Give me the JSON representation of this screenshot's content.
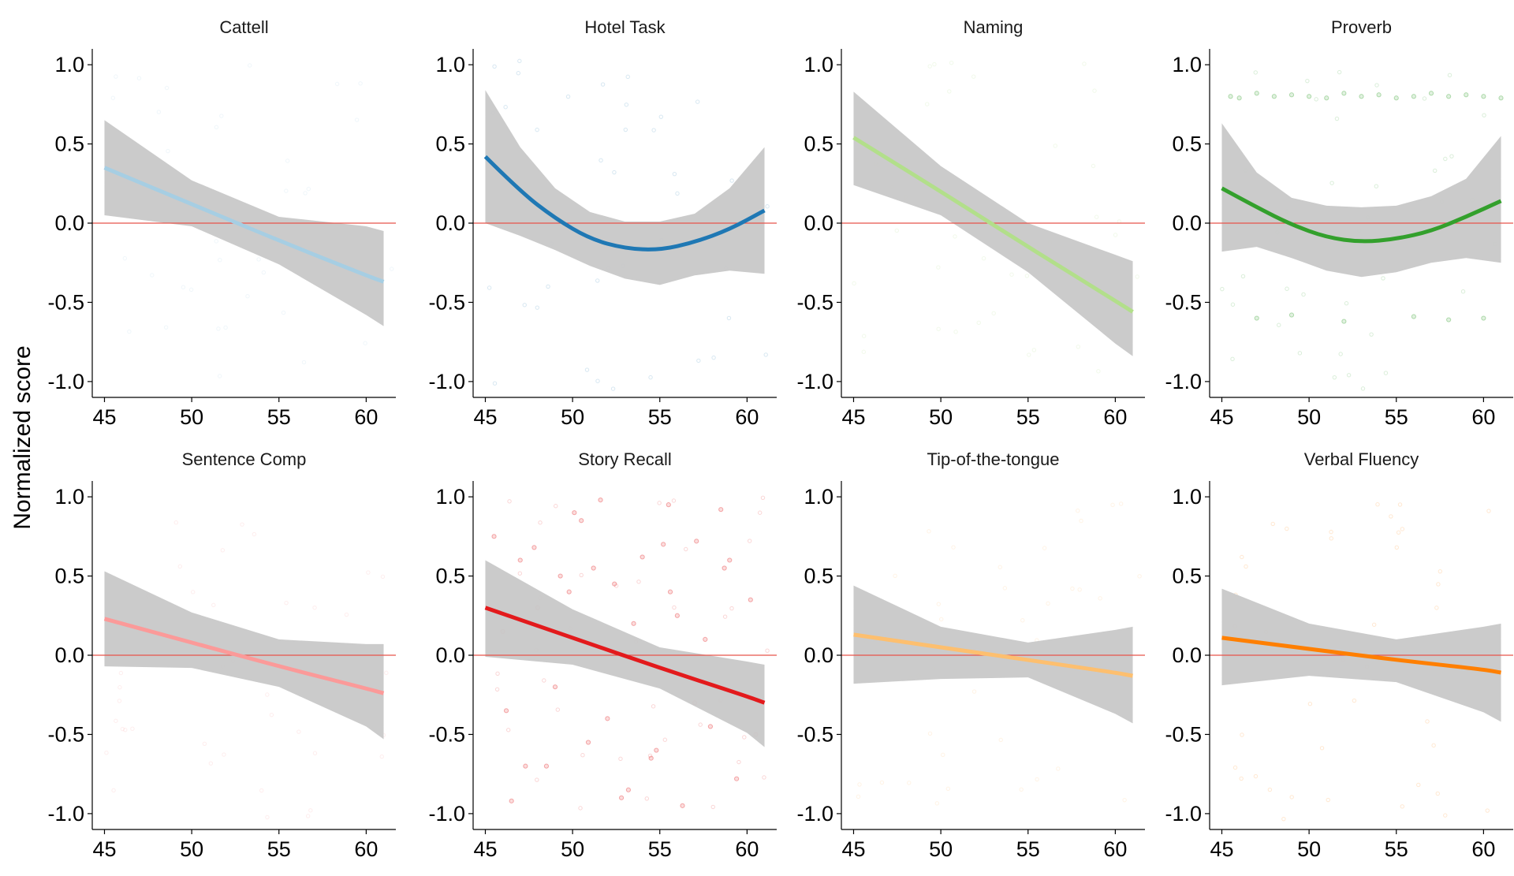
{
  "chart_data": {
    "type": "line",
    "ylabel": "Normalized score",
    "xlim": [
      44.3,
      61.7
    ],
    "ylim": [
      -1.1,
      1.1
    ],
    "xticks": [
      "45",
      "50",
      "55",
      "60"
    ],
    "yticks": [
      "-1.0",
      "-0.5",
      "0.0",
      "0.5",
      "1.0"
    ],
    "reference_line": {
      "y": 0,
      "color": "#e8534a"
    },
    "band_color": "#c8c8c8",
    "panels": [
      {
        "title": "Cattell",
        "color": "#a6cee3",
        "fit": {
          "x": [
            45,
            50,
            55,
            60,
            61
          ],
          "y": [
            0.35,
            0.12,
            -0.11,
            -0.33,
            -0.37
          ]
        },
        "ci_upper": [
          0.65,
          0.27,
          0.04,
          -0.02,
          -0.05
        ],
        "ci_lower": [
          0.05,
          -0.02,
          -0.26,
          -0.58,
          -0.65
        ]
      },
      {
        "title": "Hotel Task",
        "color": "#1f78b4",
        "fit": {
          "x": [
            45,
            47,
            49,
            51,
            53,
            55,
            57,
            59,
            61
          ],
          "y": [
            0.42,
            0.2,
            0.03,
            -0.1,
            -0.16,
            -0.17,
            -0.12,
            -0.04,
            0.08
          ]
        },
        "ci_upper": [
          0.84,
          0.48,
          0.22,
          0.07,
          0.01,
          0.01,
          0.06,
          0.22,
          0.48
        ],
        "ci_lower": [
          0.0,
          -0.08,
          -0.17,
          -0.27,
          -0.35,
          -0.39,
          -0.33,
          -0.3,
          -0.32
        ]
      },
      {
        "title": "Naming",
        "color": "#b2df8a",
        "fit": {
          "x": [
            45,
            50,
            55,
            60,
            61
          ],
          "y": [
            0.54,
            0.2,
            -0.15,
            -0.49,
            -0.56
          ]
        },
        "ci_upper": [
          0.83,
          0.36,
          0.0,
          -0.2,
          -0.24
        ],
        "ci_lower": [
          0.24,
          0.05,
          -0.31,
          -0.76,
          -0.84
        ]
      },
      {
        "title": "Proverb",
        "color": "#33a02c",
        "fit": {
          "x": [
            45,
            47,
            49,
            51,
            53,
            55,
            57,
            59,
            61
          ],
          "y": [
            0.22,
            0.1,
            -0.01,
            -0.09,
            -0.12,
            -0.1,
            -0.05,
            0.04,
            0.14
          ]
        },
        "ci_upper": [
          0.63,
          0.32,
          0.16,
          0.11,
          0.1,
          0.11,
          0.17,
          0.28,
          0.55
        ],
        "ci_lower": [
          -0.18,
          -0.15,
          -0.22,
          -0.3,
          -0.34,
          -0.31,
          -0.25,
          -0.22,
          -0.25
        ],
        "points": {
          "x": [
            45.5,
            46,
            47,
            48,
            49,
            50,
            51,
            52,
            53,
            54,
            55,
            56,
            57,
            58,
            59,
            60,
            61,
            47,
            49,
            52,
            56,
            58,
            60
          ],
          "y": [
            0.8,
            0.79,
            0.82,
            0.8,
            0.81,
            0.8,
            0.79,
            0.82,
            0.8,
            0.81,
            0.79,
            0.8,
            0.82,
            0.8,
            0.81,
            0.8,
            0.79,
            -0.6,
            -0.58,
            -0.62,
            -0.59,
            -0.61,
            -0.6
          ]
        }
      },
      {
        "title": "Sentence Comp",
        "color": "#fb9a99",
        "fit": {
          "x": [
            45,
            50,
            55,
            60,
            61
          ],
          "y": [
            0.23,
            0.08,
            -0.07,
            -0.21,
            -0.24
          ]
        },
        "ci_upper": [
          0.53,
          0.27,
          0.1,
          0.07,
          0.07
        ],
        "ci_lower": [
          -0.07,
          -0.08,
          -0.2,
          -0.45,
          -0.53
        ]
      },
      {
        "title": "Story Recall",
        "color": "#e31a1c",
        "fit": {
          "x": [
            45,
            50,
            55,
            60,
            61
          ],
          "y": [
            0.3,
            0.11,
            -0.08,
            -0.26,
            -0.3
          ]
        },
        "ci_upper": [
          0.6,
          0.29,
          0.05,
          -0.04,
          -0.06
        ],
        "ci_lower": [
          -0.01,
          -0.06,
          -0.21,
          -0.49,
          -0.58
        ],
        "points": {
          "x": [
            45.5,
            46.2,
            47,
            47.8,
            48.5,
            49.3,
            50.1,
            50.9,
            51.6,
            52.4,
            53.2,
            54,
            54.8,
            55.6,
            56.3,
            57.1,
            57.9,
            58.7,
            59.4,
            60.2,
            46.5,
            48,
            50.5,
            52,
            53.5,
            55.2,
            57,
            58.5,
            60.5,
            47.3,
            49.8,
            51.2,
            54.5,
            56,
            59,
            46,
            52.8,
            55.5,
            57.6,
            49
          ],
          "y": [
            0.75,
            -0.35,
            0.6,
            0.68,
            -0.7,
            0.5,
            0.9,
            -0.55,
            0.98,
            0.45,
            -0.85,
            0.62,
            -0.6,
            0.4,
            -0.95,
            0.72,
            -0.45,
            0.55,
            -0.78,
            0.35,
            -0.92,
            0.3,
            0.85,
            -0.4,
            0.2,
            0.7,
            -0.3,
            0.92,
            -0.5,
            -0.7,
            0.4,
            0.55,
            -0.65,
            0.25,
            0.6,
            0.15,
            -0.9,
            0.95,
            0.1,
            -0.2
          ]
        }
      },
      {
        "title": "Tip-of-the-tongue",
        "color": "#fdbf6f",
        "fit": {
          "x": [
            45,
            50,
            55,
            60,
            61
          ],
          "y": [
            0.13,
            0.05,
            -0.03,
            -0.11,
            -0.13
          ]
        },
        "ci_upper": [
          0.44,
          0.18,
          0.08,
          0.16,
          0.18
        ],
        "ci_lower": [
          -0.18,
          -0.15,
          -0.14,
          -0.37,
          -0.43
        ]
      },
      {
        "title": "Verbal Fluency",
        "color": "#ff7f00",
        "fit": {
          "x": [
            45,
            50,
            55,
            60,
            61
          ],
          "y": [
            0.11,
            0.04,
            -0.03,
            -0.09,
            -0.11
          ]
        },
        "ci_upper": [
          0.42,
          0.2,
          0.1,
          0.18,
          0.2
        ],
        "ci_lower": [
          -0.19,
          -0.13,
          -0.17,
          -0.36,
          -0.42
        ]
      }
    ]
  }
}
